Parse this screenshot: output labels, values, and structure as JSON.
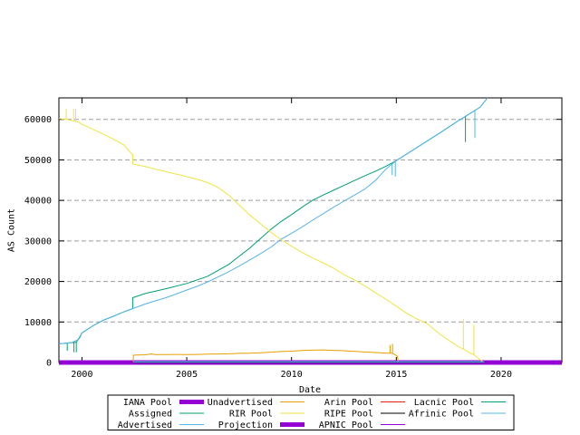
{
  "chart_data": {
    "type": "line",
    "title": "",
    "xlabel": "Date",
    "ylabel": "AS Count",
    "xlim": [
      1998.9,
      2022.9
    ],
    "ylim": [
      0,
      65300
    ],
    "grid": "horizontal-dashed",
    "grid_color": "#9e9e9e",
    "border_color": "#000000",
    "xticks": {
      "values": [
        2000,
        2005,
        2010,
        2015,
        2020
      ],
      "labels": [
        "2000",
        "2005",
        "2010",
        "2015",
        "2020"
      ]
    },
    "yticks": {
      "values": [
        0,
        10000,
        20000,
        30000,
        40000,
        50000,
        60000
      ],
      "labels": [
        "0",
        "10000",
        "20000",
        "30000",
        "40000",
        "50000",
        "60000"
      ]
    },
    "series": [
      {
        "name": "IANA Pool",
        "color": "#9400d3",
        "width": 5,
        "points": [
          [
            1998.9,
            0
          ],
          [
            2022.9,
            0
          ]
        ]
      },
      {
        "name": "Assigned",
        "color": "#009e73",
        "width": 1,
        "points": [
          [
            1998.9,
            4600
          ],
          [
            1999.2,
            4750
          ],
          [
            1999.3,
            4800
          ],
          [
            1999.3,
            2900
          ],
          [
            1999.3,
            4800
          ],
          [
            1999.5,
            4900
          ],
          [
            1999.62,
            4950
          ],
          [
            1999.62,
            2500
          ],
          [
            1999.62,
            4950
          ],
          [
            1999.73,
            5000
          ],
          [
            1999.73,
            2500
          ],
          [
            1999.73,
            5000
          ],
          [
            1999.9,
            6200
          ],
          [
            2000,
            7300
          ],
          [
            2000.5,
            9000
          ],
          [
            2001,
            10400
          ],
          [
            2001.5,
            11400
          ],
          [
            2002,
            12500
          ],
          [
            2002.42,
            13300
          ],
          [
            2002.42,
            16000
          ],
          [
            2003,
            17000
          ],
          [
            2004,
            18200
          ],
          [
            2005,
            19500
          ],
          [
            2006,
            21300
          ],
          [
            2007,
            24200
          ],
          [
            2008,
            28200
          ],
          [
            2008.5,
            30500
          ],
          [
            2009,
            32800
          ],
          [
            2009.5,
            34800
          ],
          [
            2010,
            36500
          ],
          [
            2010.5,
            38300
          ],
          [
            2011,
            40000
          ],
          [
            2011.5,
            41300
          ],
          [
            2012,
            42500
          ],
          [
            2012.5,
            43700
          ],
          [
            2013,
            44900
          ],
          [
            2013.5,
            46100
          ],
          [
            2014,
            47200
          ],
          [
            2014.5,
            48400
          ],
          [
            2015,
            49800
          ],
          [
            2015.3,
            50800
          ],
          [
            2016,
            53100
          ],
          [
            2017,
            56400
          ],
          [
            2018,
            59800
          ],
          [
            2018.3,
            60700
          ],
          [
            2018.3,
            54400
          ],
          [
            2018.3,
            60700
          ],
          [
            2018.5,
            61400
          ],
          [
            2018.75,
            62200
          ],
          [
            2019,
            63000
          ],
          [
            2019.35,
            65300
          ]
        ]
      },
      {
        "name": "Advertised",
        "color": "#56b4e9",
        "width": 1,
        "points": [
          [
            1998.9,
            4600
          ],
          [
            1999.5,
            4900
          ],
          [
            1999.8,
            5600
          ],
          [
            2000,
            7300
          ],
          [
            2000.5,
            9000
          ],
          [
            2001,
            10400
          ],
          [
            2001.5,
            11400
          ],
          [
            2002,
            12500
          ],
          [
            2002.42,
            13300
          ],
          [
            2003,
            14400
          ],
          [
            2003.5,
            15200
          ],
          [
            2004,
            16000
          ],
          [
            2004.5,
            16900
          ],
          [
            2005,
            17900
          ],
          [
            2005.5,
            18800
          ],
          [
            2006,
            19900
          ],
          [
            2006.5,
            21100
          ],
          [
            2007,
            22400
          ],
          [
            2007.5,
            23800
          ],
          [
            2008,
            25300
          ],
          [
            2008.5,
            26800
          ],
          [
            2009,
            28400
          ],
          [
            2009.5,
            30400
          ],
          [
            2010,
            31900
          ],
          [
            2010.5,
            33400
          ],
          [
            2011,
            35100
          ],
          [
            2011.5,
            36700
          ],
          [
            2012,
            38300
          ],
          [
            2012.5,
            39800
          ],
          [
            2013,
            41300
          ],
          [
            2013.5,
            42800
          ],
          [
            2014,
            44900
          ],
          [
            2014.5,
            47700
          ],
          [
            2014.8,
            49000
          ],
          [
            2014.8,
            46300
          ],
          [
            2014.8,
            49000
          ],
          [
            2014.95,
            49600
          ],
          [
            2014.95,
            45900
          ],
          [
            2014.95,
            49600
          ],
          [
            2015.05,
            50000
          ],
          [
            2015.3,
            50800
          ],
          [
            2016,
            53100
          ],
          [
            2017,
            56400
          ],
          [
            2018,
            59800
          ],
          [
            2018.5,
            61400
          ],
          [
            2018.75,
            62200
          ],
          [
            2018.75,
            55400
          ],
          [
            2018.75,
            62200
          ],
          [
            2019,
            63000
          ],
          [
            2019.35,
            65300
          ]
        ]
      },
      {
        "name": "Unadvertised",
        "color": "#e69f00",
        "width": 1,
        "points": [
          [
            2002.45,
            0
          ],
          [
            2002.45,
            1800
          ],
          [
            2002.6,
            1850
          ],
          [
            2003,
            1900
          ],
          [
            2003.3,
            2100
          ],
          [
            2003.5,
            1950
          ],
          [
            2004,
            1975
          ],
          [
            2004.5,
            2000
          ],
          [
            2005,
            1960
          ],
          [
            2005.5,
            2000
          ],
          [
            2006,
            2050
          ],
          [
            2006.5,
            2100
          ],
          [
            2007,
            2150
          ],
          [
            2007.5,
            2250
          ],
          [
            2008,
            2300
          ],
          [
            2008.5,
            2400
          ],
          [
            2009,
            2550
          ],
          [
            2009.5,
            2700
          ],
          [
            2010,
            2800
          ],
          [
            2010.5,
            2950
          ],
          [
            2011,
            3050
          ],
          [
            2011.5,
            3100
          ],
          [
            2012,
            3000
          ],
          [
            2012.5,
            2900
          ],
          [
            2013,
            2750
          ],
          [
            2013.5,
            2600
          ],
          [
            2014,
            2450
          ],
          [
            2014.4,
            2350
          ],
          [
            2014.6,
            2300
          ],
          [
            2014.7,
            2300
          ],
          [
            2014.7,
            4300
          ],
          [
            2014.7,
            2300
          ],
          [
            2014.82,
            2250
          ],
          [
            2014.82,
            4600
          ],
          [
            2014.82,
            2250
          ],
          [
            2014.95,
            1900
          ],
          [
            2015.05,
            1500
          ],
          [
            2015.1,
            0
          ]
        ]
      },
      {
        "name": "RIR Pool",
        "color": "#f0e442",
        "width": 1,
        "points": [
          [
            1998.9,
            60200
          ],
          [
            1999.15,
            60000
          ],
          [
            1999.25,
            60000
          ],
          [
            1999.25,
            62600
          ],
          [
            1999.25,
            60000
          ],
          [
            1999.45,
            59800
          ],
          [
            1999.6,
            59600
          ],
          [
            1999.6,
            62600
          ],
          [
            1999.6,
            59600
          ],
          [
            1999.7,
            59500
          ],
          [
            1999.7,
            62600
          ],
          [
            1999.7,
            59500
          ],
          [
            1999.85,
            59300
          ],
          [
            2000,
            58800
          ],
          [
            2000.5,
            57600
          ],
          [
            2001,
            56400
          ],
          [
            2001.5,
            55100
          ],
          [
            2002,
            53700
          ],
          [
            2002.3,
            51900
          ],
          [
            2002.42,
            51300
          ],
          [
            2002.42,
            49000
          ],
          [
            2002.7,
            48700
          ],
          [
            2003,
            48400
          ],
          [
            2003.5,
            47700
          ],
          [
            2004,
            47100
          ],
          [
            2004.5,
            46500
          ],
          [
            2005,
            45900
          ],
          [
            2005.5,
            45200
          ],
          [
            2006,
            44400
          ],
          [
            2006.5,
            43200
          ],
          [
            2007,
            41300
          ],
          [
            2007.5,
            38900
          ],
          [
            2008,
            36400
          ],
          [
            2008.5,
            34300
          ],
          [
            2009,
            32200
          ],
          [
            2009.5,
            30300
          ],
          [
            2010,
            28700
          ],
          [
            2010.5,
            27200
          ],
          [
            2011,
            25800
          ],
          [
            2011.5,
            24600
          ],
          [
            2012,
            23300
          ],
          [
            2012.5,
            21700
          ],
          [
            2013,
            20400
          ],
          [
            2013.5,
            18900
          ],
          [
            2014,
            17200
          ],
          [
            2014.5,
            15650
          ],
          [
            2015,
            13900
          ],
          [
            2015.5,
            12100
          ],
          [
            2016,
            10700
          ],
          [
            2016.3,
            10000
          ],
          [
            2016.5,
            9500
          ],
          [
            2017,
            7300
          ],
          [
            2017.5,
            5500
          ],
          [
            2018,
            3800
          ],
          [
            2018.2,
            3300
          ],
          [
            2018.2,
            10800
          ],
          [
            2018.2,
            3300
          ],
          [
            2018.35,
            2900
          ],
          [
            2018.5,
            2400
          ],
          [
            2018.7,
            1900
          ],
          [
            2018.7,
            9300
          ],
          [
            2018.7,
            1900
          ],
          [
            2018.9,
            1100
          ],
          [
            2019.1,
            300
          ],
          [
            2019.2,
            0
          ]
        ]
      },
      {
        "name": "Projection",
        "color": "#9400d3",
        "width": 5,
        "points": [
          [
            2019.2,
            0
          ],
          [
            2022.9,
            0
          ]
        ]
      },
      {
        "name": "Arin Pool",
        "color": "#e51e10",
        "width": 1,
        "points": [
          [
            2002.45,
            120
          ],
          [
            2019.2,
            120
          ]
        ]
      },
      {
        "name": "RIPE Pool",
        "color": "#000000",
        "width": 1,
        "points": [
          [
            2002.45,
            60
          ],
          [
            2019.2,
            60
          ]
        ]
      },
      {
        "name": "APNIC Pool",
        "color": "#9400d3",
        "width": 1,
        "points": [
          [
            2002.45,
            160
          ],
          [
            2019.2,
            160
          ]
        ]
      },
      {
        "name": "Lacnic Pool",
        "color": "#009e73",
        "width": 1,
        "points": [
          [
            2002.45,
            90
          ],
          [
            2019.2,
            90
          ]
        ]
      },
      {
        "name": "Afrinic Pool",
        "color": "#56b4e9",
        "width": 1,
        "points": [
          [
            2002.45,
            200
          ],
          [
            2019.2,
            200
          ]
        ]
      }
    ],
    "legend": {
      "position": "below-axis",
      "columns": [
        [
          {
            "label": "IANA Pool",
            "color": "#9400d3",
            "lw": 5
          },
          {
            "label": "Assigned",
            "color": "#009e73",
            "lw": 1
          },
          {
            "label": "Advertised",
            "color": "#56b4e9",
            "lw": 1
          }
        ],
        [
          {
            "label": "Unadvertised",
            "color": "#e69f00",
            "lw": 1
          },
          {
            "label": "RIR Pool",
            "color": "#f0e442",
            "lw": 1
          },
          {
            "label": "Projection",
            "color": "#9400d3",
            "lw": 5
          }
        ],
        [
          {
            "label": "Arin Pool",
            "color": "#e51e10",
            "lw": 1
          },
          {
            "label": "RIPE Pool",
            "color": "#000000",
            "lw": 1
          },
          {
            "label": "APNIC Pool",
            "color": "#9400d3",
            "lw": 1
          }
        ],
        [
          {
            "label": "Lacnic Pool",
            "color": "#009e73",
            "lw": 1
          },
          {
            "label": "Afrinic Pool",
            "color": "#56b4e9",
            "lw": 1
          }
        ]
      ]
    }
  }
}
